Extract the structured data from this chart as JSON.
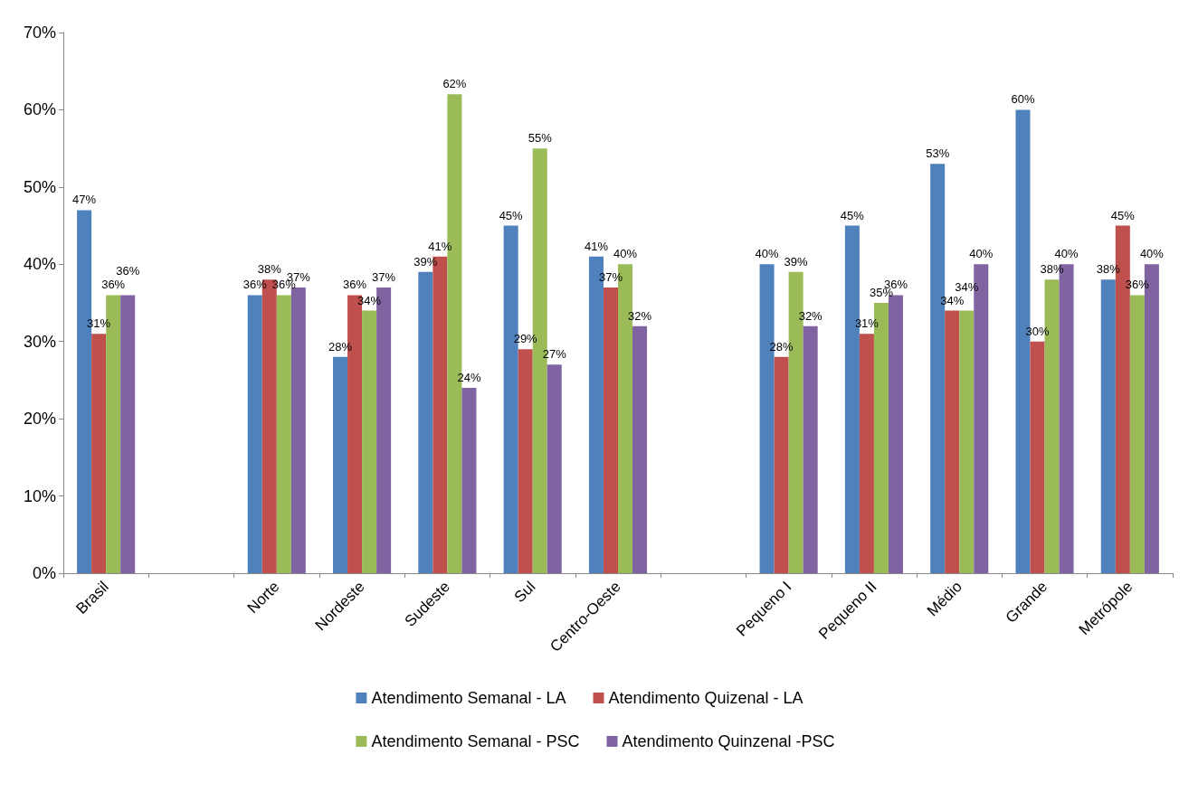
{
  "chart_data": {
    "type": "bar",
    "categories": [
      "Brasil",
      null,
      "Norte",
      "Nordeste",
      "Sudeste",
      "Sul",
      "Centro-Oeste",
      null,
      "Pequeno I",
      "Pequeno II",
      "Médio",
      "Grande",
      "Metrópole"
    ],
    "series": [
      {
        "name": "Atendimento Semanal - LA",
        "color": "#4f81bd",
        "values": [
          47,
          null,
          36,
          28,
          39,
          45,
          41,
          null,
          40,
          45,
          53,
          60,
          38
        ],
        "value_labels": [
          "47%",
          null,
          "36%",
          "28%",
          "39%",
          "45%",
          "41%",
          null,
          "40%",
          "45%",
          "53%",
          "60%",
          "38%"
        ]
      },
      {
        "name": "Atendimento Quizenal - LA",
        "color": "#c0504d",
        "values": [
          31,
          null,
          38,
          36,
          41,
          29,
          37,
          null,
          28,
          31,
          34,
          30,
          45
        ],
        "value_labels": [
          "31%",
          null,
          "38%",
          "36%",
          "41%",
          "29%",
          "37%",
          null,
          "28%",
          "31%",
          "34%",
          "30%",
          "45%"
        ]
      },
      {
        "name": "Atendimento Semanal - PSC",
        "color": "#9bbb59",
        "values": [
          36,
          null,
          36,
          34,
          62,
          55,
          40,
          null,
          39,
          35,
          34,
          38,
          36
        ],
        "value_labels": [
          "36%",
          null,
          "36%",
          "34%",
          "62%",
          "55%",
          "40%",
          null,
          "39%",
          "35%",
          "34%",
          "38%",
          "36%"
        ]
      },
      {
        "name": "Atendimento Quinzenal -PSC",
        "color": "#8064a2",
        "values": [
          36,
          null,
          37,
          37,
          24,
          27,
          32,
          null,
          32,
          36,
          40,
          40,
          40
        ],
        "value_labels": [
          "36%",
          null,
          "37%",
          "37%",
          "24%",
          "27%",
          "32%",
          null,
          "32%",
          "36%",
          "40%",
          "40%",
          "40%"
        ]
      }
    ],
    "ylim": [
      0,
      70
    ],
    "yticks": [
      {
        "value": 0,
        "label": "0%"
      },
      {
        "value": 10,
        "label": "10%"
      },
      {
        "value": 20,
        "label": "20%"
      },
      {
        "value": 30,
        "label": "30%"
      },
      {
        "value": 40,
        "label": "40%"
      },
      {
        "value": 50,
        "label": "50%"
      },
      {
        "value": 60,
        "label": "60%"
      },
      {
        "value": 70,
        "label": "70%"
      }
    ],
    "grid": false,
    "legend": "bottom"
  }
}
